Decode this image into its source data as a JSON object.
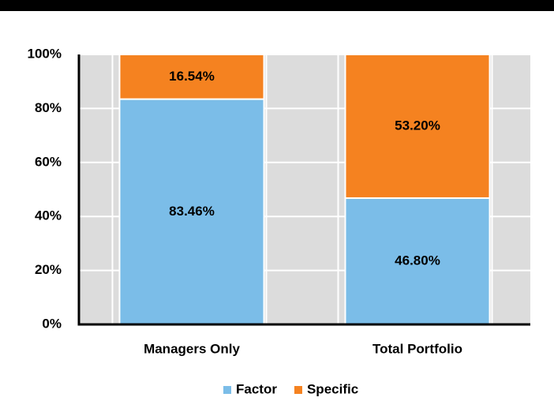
{
  "chart_data": {
    "type": "stacked_bar",
    "categories": [
      "Managers Only",
      "Total Portfolio"
    ],
    "series": [
      {
        "name": "Factor",
        "color": "#7bbde8",
        "values": [
          83.46,
          46.8
        ],
        "value_labels": [
          "83.46%",
          "46.80%"
        ]
      },
      {
        "name": "Specific",
        "color": "#f58220",
        "values": [
          16.54,
          53.2
        ],
        "value_labels": [
          "16.54%",
          "53.20%"
        ]
      }
    ],
    "ylim": [
      0,
      100
    ],
    "yticks": [
      {
        "value": 0,
        "label": "0%"
      },
      {
        "value": 20,
        "label": "20%"
      },
      {
        "value": 40,
        "label": "40%"
      },
      {
        "value": 60,
        "label": "60%"
      },
      {
        "value": 80,
        "label": "80%"
      },
      {
        "value": 100,
        "label": "100%"
      }
    ],
    "grid": true,
    "legend": "bottom"
  }
}
